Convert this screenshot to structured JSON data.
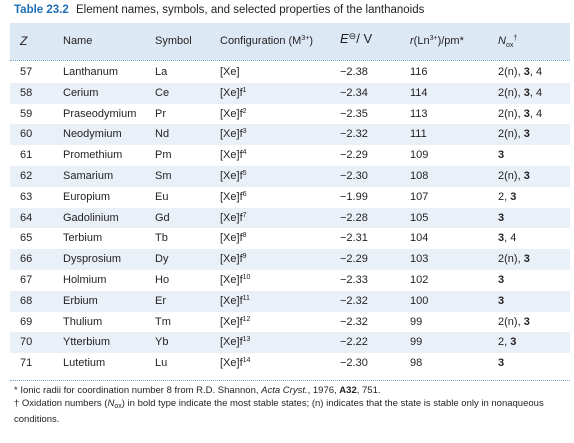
{
  "title": {
    "number": "Table 23.2",
    "text": "Element names, symbols, and selected properties of the lanthanoids"
  },
  "columns": {
    "z": "Z",
    "name": "Name",
    "symbol": "Symbol",
    "config": "Configuration (M³⁺)",
    "e": "E⁰ / V",
    "r": "r(Ln³⁺)/pm*",
    "n": "Nₒₓ†"
  },
  "rows": [
    {
      "z": "57",
      "name": "Lanthanum",
      "symbol": "La",
      "config": "[Xe]",
      "e": "−2.38",
      "r": "116",
      "n": "2(n), 3, 4"
    },
    {
      "z": "58",
      "name": "Cerium",
      "symbol": "Ce",
      "config": "[Xe]f¹",
      "e": "−2.34",
      "r": "114",
      "n": "2(n), 3, 4"
    },
    {
      "z": "59",
      "name": "Praseodymium",
      "symbol": "Pr",
      "config": "[Xe]f²",
      "e": "−2.35",
      "r": "113",
      "n": "2(n), 3, 4"
    },
    {
      "z": "60",
      "name": "Neodymium",
      "symbol": "Nd",
      "config": "[Xe]f³",
      "e": "−2.32",
      "r": "111",
      "n": "2(n), 3"
    },
    {
      "z": "61",
      "name": "Promethium",
      "symbol": "Pm",
      "config": "[Xe]f⁴",
      "e": "−2.29",
      "r": "109",
      "n": "3"
    },
    {
      "z": "62",
      "name": "Samarium",
      "symbol": "Sm",
      "config": "[Xe]f⁵",
      "e": "−2.30",
      "r": "108",
      "n": "2(n), 3"
    },
    {
      "z": "63",
      "name": "Europium",
      "symbol": "Eu",
      "config": "[Xe]f⁶",
      "e": "−1.99",
      "r": "107",
      "n": "2, 3"
    },
    {
      "z": "64",
      "name": "Gadolinium",
      "symbol": "Gd",
      "config": "[Xe]f⁷",
      "e": "−2.28",
      "r": "105",
      "n": "3"
    },
    {
      "z": "65",
      "name": "Terbium",
      "symbol": "Tb",
      "config": "[Xe]f⁸",
      "e": "−2.31",
      "r": "104",
      "n": "3, 4"
    },
    {
      "z": "66",
      "name": "Dysprosium",
      "symbol": "Dy",
      "config": "[Xe]f⁹",
      "e": "−2.29",
      "r": "103",
      "n": "2(n), 3"
    },
    {
      "z": "67",
      "name": "Holmium",
      "symbol": "Ho",
      "config": "[Xe]f¹⁰",
      "e": "−2.33",
      "r": "102",
      "n": "3"
    },
    {
      "z": "68",
      "name": "Erbium",
      "symbol": "Er",
      "config": "[Xe]f¹¹",
      "e": "−2.32",
      "r": "100",
      "n": "3"
    },
    {
      "z": "69",
      "name": "Thulium",
      "symbol": "Tm",
      "config": "[Xe]f¹²",
      "e": "−2.32",
      "r": "99",
      "n": "2(n), 3"
    },
    {
      "z": "70",
      "name": "Ytterbium",
      "symbol": "Yb",
      "config": "[Xe]f¹³",
      "e": "−2.22",
      "r": "99",
      "n": "2, 3"
    },
    {
      "z": "71",
      "name": "Lutetium",
      "symbol": "Lu",
      "config": "[Xe]f¹⁴",
      "e": "−2.30",
      "r": "98",
      "n": "3"
    }
  ],
  "notes": {
    "note1": "* Ionic radii for coordination number 8 from R.D. Shannon, Acta Cryst., 1976, A32, 751.",
    "note2": "† Oxidation numbers (Nₒₓ) in bold type indicate the most stable states; (n) indicates that the state is stable only in nonaqueous conditions."
  },
  "colors": {
    "title_number": "#1f6fb4",
    "header_band": "#dce8f4",
    "alt_row": "#e9f0f8",
    "rule": "#7ea4cc"
  }
}
